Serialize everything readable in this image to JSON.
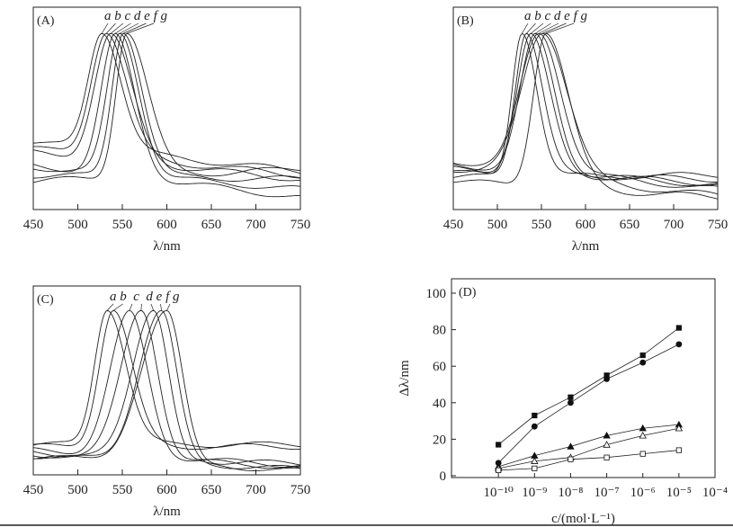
{
  "chart_data": [
    {
      "type": "line",
      "panel_label": "(A)",
      "xlabel": "λ/nm",
      "xlim": [
        450,
        750
      ],
      "x_ticks": [
        450,
        500,
        550,
        600,
        650,
        700,
        750
      ],
      "x_tick_labels": [
        "450",
        "500",
        "550",
        "600",
        "650",
        "700",
        "750"
      ],
      "ylabel": "",
      "curve_labels": "a b c d e f g",
      "series": [
        {
          "name": "a",
          "peak_nm": 527,
          "width_left": 22,
          "width_right": 30,
          "base_left": 0.33,
          "base_right": 0.19
        },
        {
          "name": "b",
          "peak_nm": 532,
          "width_left": 24,
          "width_right": 32,
          "base_left": 0.3,
          "base_right": 0.17
        },
        {
          "name": "c",
          "peak_nm": 537,
          "width_left": 25,
          "width_right": 33,
          "base_left": 0.28,
          "base_right": 0.15
        },
        {
          "name": "d",
          "peak_nm": 542,
          "width_left": 22,
          "width_right": 30,
          "base_left": 0.22,
          "base_right": 0.06
        },
        {
          "name": "e",
          "peak_nm": 547,
          "width_left": 20,
          "width_right": 30,
          "base_left": 0.21,
          "base_right": 0.1
        },
        {
          "name": "f",
          "peak_nm": 551,
          "width_left": 18,
          "width_right": 30,
          "base_left": 0.17,
          "base_right": 0.15
        },
        {
          "name": "g",
          "peak_nm": 555,
          "width_left": 17,
          "width_right": 34,
          "base_left": 0.14,
          "base_right": 0.2
        }
      ]
    },
    {
      "type": "line",
      "panel_label": "(B)",
      "xlabel": "λ/nm",
      "xlim": [
        450,
        750
      ],
      "x_ticks": [
        450,
        500,
        550,
        600,
        650,
        700,
        750
      ],
      "x_tick_labels": [
        "450",
        "500",
        "550",
        "600",
        "650",
        "700",
        "750"
      ],
      "ylabel": "",
      "curve_labels": "a b c d e f g",
      "series": [
        {
          "name": "a",
          "peak_nm": 528,
          "width_left": 16,
          "width_right": 24,
          "base_left": 0.16,
          "base_right": 0.17
        },
        {
          "name": "b",
          "peak_nm": 533,
          "width_left": 18,
          "width_right": 26,
          "base_left": 0.18,
          "base_right": 0.15
        },
        {
          "name": "c",
          "peak_nm": 538,
          "width_left": 22,
          "width_right": 30,
          "base_left": 0.2,
          "base_right": 0.13
        },
        {
          "name": "d",
          "peak_nm": 543,
          "width_left": 24,
          "width_right": 30,
          "base_left": 0.22,
          "base_right": 0.12
        },
        {
          "name": "e",
          "peak_nm": 547,
          "width_left": 30,
          "width_right": 34,
          "base_left": 0.24,
          "base_right": 0.1
        },
        {
          "name": "f",
          "peak_nm": 551,
          "width_left": 34,
          "width_right": 40,
          "base_left": 0.2,
          "base_right": 0.07
        },
        {
          "name": "g",
          "peak_nm": 555,
          "width_left": 20,
          "width_right": 36,
          "base_left": 0.14,
          "base_right": 0.06
        }
      ]
    },
    {
      "type": "line",
      "panel_label": "(C)",
      "xlabel": "λ/nm",
      "xlim": [
        450,
        750
      ],
      "x_ticks": [
        450,
        500,
        550,
        600,
        650,
        700,
        750
      ],
      "x_tick_labels": [
        "450",
        "500",
        "550",
        "600",
        "650",
        "700",
        "750"
      ],
      "ylabel": "",
      "curve_labels": "a b  c  d e f g",
      "series": [
        {
          "name": "a",
          "peak_nm": 533,
          "width_left": 20,
          "width_right": 30,
          "base_left": 0.16,
          "base_right": 0.16
        },
        {
          "name": "b",
          "peak_nm": 540,
          "width_left": 22,
          "width_right": 30,
          "base_left": 0.15,
          "base_right": 0.15
        },
        {
          "name": "c",
          "peak_nm": 558,
          "width_left": 30,
          "width_right": 28,
          "base_left": 0.13,
          "base_right": 0.05
        },
        {
          "name": "d",
          "peak_nm": 571,
          "width_left": 32,
          "width_right": 26,
          "base_left": 0.12,
          "base_right": 0.04
        },
        {
          "name": "e",
          "peak_nm": 585,
          "width_left": 34,
          "width_right": 24,
          "base_left": 0.11,
          "base_right": 0.02
        },
        {
          "name": "f",
          "peak_nm": 594,
          "width_left": 36,
          "width_right": 24,
          "base_left": 0.1,
          "base_right": 0.03
        },
        {
          "name": "g",
          "peak_nm": 600,
          "width_left": 40,
          "width_right": 24,
          "base_left": 0.09,
          "base_right": 0.06
        }
      ]
    },
    {
      "type": "line",
      "panel_label": "(D)",
      "xlabel": "c/(mol·L⁻¹)",
      "ylabel": "Δλ/nm",
      "x_scale": "log10",
      "x_log": [
        -10,
        -9,
        -8,
        -7,
        -6,
        -5
      ],
      "x_tick_log": [
        -10,
        -9,
        -8,
        -7,
        -6,
        -5,
        -4
      ],
      "x_tick_labels": [
        "10⁻¹⁰",
        "10⁻⁹",
        "10⁻⁸",
        "10⁻⁷",
        "10⁻⁶",
        "10⁻⁵",
        "10⁻⁴"
      ],
      "xlim_log": [
        -11.3,
        -4
      ],
      "ylim": [
        0,
        100
      ],
      "y_ticks": [
        0,
        20,
        40,
        60,
        80,
        100
      ],
      "y_tick_labels": [
        "0",
        "20",
        "40",
        "60",
        "80",
        "100"
      ],
      "series": [
        {
          "marker": "filled-square",
          "values": [
            17,
            33,
            43,
            55,
            66,
            81
          ]
        },
        {
          "marker": "filled-circle",
          "values": [
            7,
            27,
            40,
            53,
            62,
            72
          ]
        },
        {
          "marker": "filled-triangle",
          "values": [
            5,
            11,
            16,
            22,
            26,
            28
          ]
        },
        {
          "marker": "open-triangle",
          "values": [
            4,
            8,
            10,
            17,
            22,
            26
          ]
        },
        {
          "marker": "open-square",
          "values": [
            3,
            4,
            9,
            10,
            12,
            14
          ]
        }
      ]
    }
  ]
}
